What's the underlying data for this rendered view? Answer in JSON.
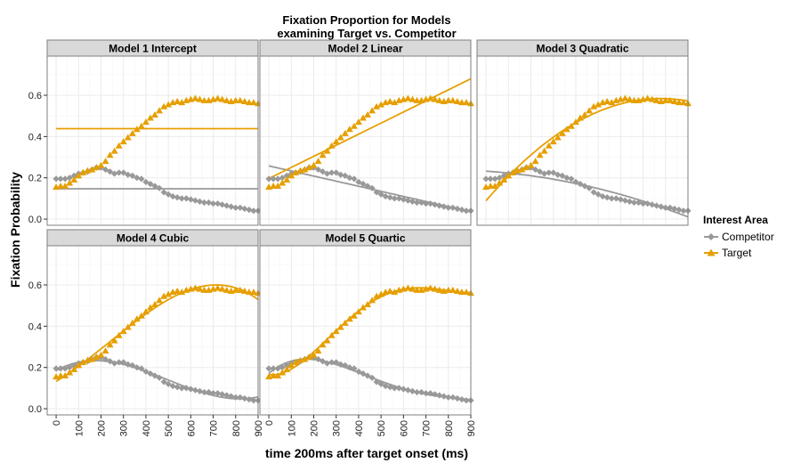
{
  "chart_data": {
    "type": "line",
    "title_line1": "Fixation Proportion for Models",
    "title_line2": "examining Target vs. Competitor",
    "xlabel": "time 200ms after target onset (ms)",
    "ylabel": "Fixation Probability",
    "xlim": [
      -40,
      900
    ],
    "ylim": [
      -0.03,
      0.79
    ],
    "x_ticks": [
      "0",
      "100",
      "200",
      "300",
      "400",
      "500",
      "600",
      "700",
      "800",
      "900"
    ],
    "x_tick_values": [
      0,
      100,
      200,
      300,
      400,
      500,
      600,
      700,
      800,
      900
    ],
    "y_ticks": [
      "0.0",
      "0.2",
      "0.4",
      "0.6"
    ],
    "y_tick_values": [
      0,
      0.2,
      0.4,
      0.6
    ],
    "grid": true,
    "legend": {
      "title": "Interest Area",
      "placement": "right",
      "items": [
        {
          "label": "Competitor",
          "color": "#999999",
          "shape": "diamond"
        },
        {
          "label": "Target",
          "color": "#E69F00",
          "shape": "triangle"
        }
      ]
    },
    "observed": {
      "x": [
        0,
        20,
        40,
        60,
        80,
        100,
        120,
        140,
        160,
        180,
        200,
        220,
        240,
        260,
        280,
        300,
        320,
        340,
        360,
        380,
        400,
        420,
        440,
        460,
        480,
        500,
        520,
        540,
        560,
        580,
        600,
        620,
        640,
        660,
        680,
        700,
        720,
        740,
        760,
        780,
        800,
        820,
        840,
        860,
        880,
        900
      ],
      "target": [
        0.155,
        0.16,
        0.16,
        0.175,
        0.19,
        0.21,
        0.225,
        0.235,
        0.24,
        0.25,
        0.26,
        0.28,
        0.31,
        0.33,
        0.355,
        0.375,
        0.395,
        0.415,
        0.435,
        0.45,
        0.47,
        0.49,
        0.505,
        0.525,
        0.545,
        0.555,
        0.565,
        0.57,
        0.565,
        0.575,
        0.58,
        0.585,
        0.58,
        0.575,
        0.575,
        0.58,
        0.585,
        0.58,
        0.575,
        0.57,
        0.575,
        0.575,
        0.57,
        0.565,
        0.565,
        0.56
      ],
      "competitor": [
        0.195,
        0.195,
        0.195,
        0.2,
        0.21,
        0.22,
        0.225,
        0.23,
        0.24,
        0.25,
        0.25,
        0.24,
        0.23,
        0.22,
        0.225,
        0.225,
        0.215,
        0.21,
        0.2,
        0.195,
        0.18,
        0.17,
        0.16,
        0.15,
        0.13,
        0.12,
        0.11,
        0.105,
        0.1,
        0.1,
        0.095,
        0.09,
        0.085,
        0.08,
        0.08,
        0.075,
        0.075,
        0.07,
        0.065,
        0.06,
        0.055,
        0.055,
        0.05,
        0.045,
        0.04,
        0.04
      ]
    },
    "panels": [
      {
        "label": "Model 1 Intercept",
        "order": 0
      },
      {
        "label": "Model 2 Linear",
        "order": 1
      },
      {
        "label": "Model 3 Quadratic",
        "order": 2
      },
      {
        "label": "Model 4 Cubic",
        "order": 3
      },
      {
        "label": "Model 5 Quartic",
        "order": 4
      }
    ],
    "colors": {
      "target": "#E69F00",
      "competitor": "#999999",
      "strip": "#D9D9D9",
      "panel_border": "#7F7F7F",
      "grid_major": "#EBEBEB",
      "grid_minor": "#F5F5F5"
    }
  }
}
